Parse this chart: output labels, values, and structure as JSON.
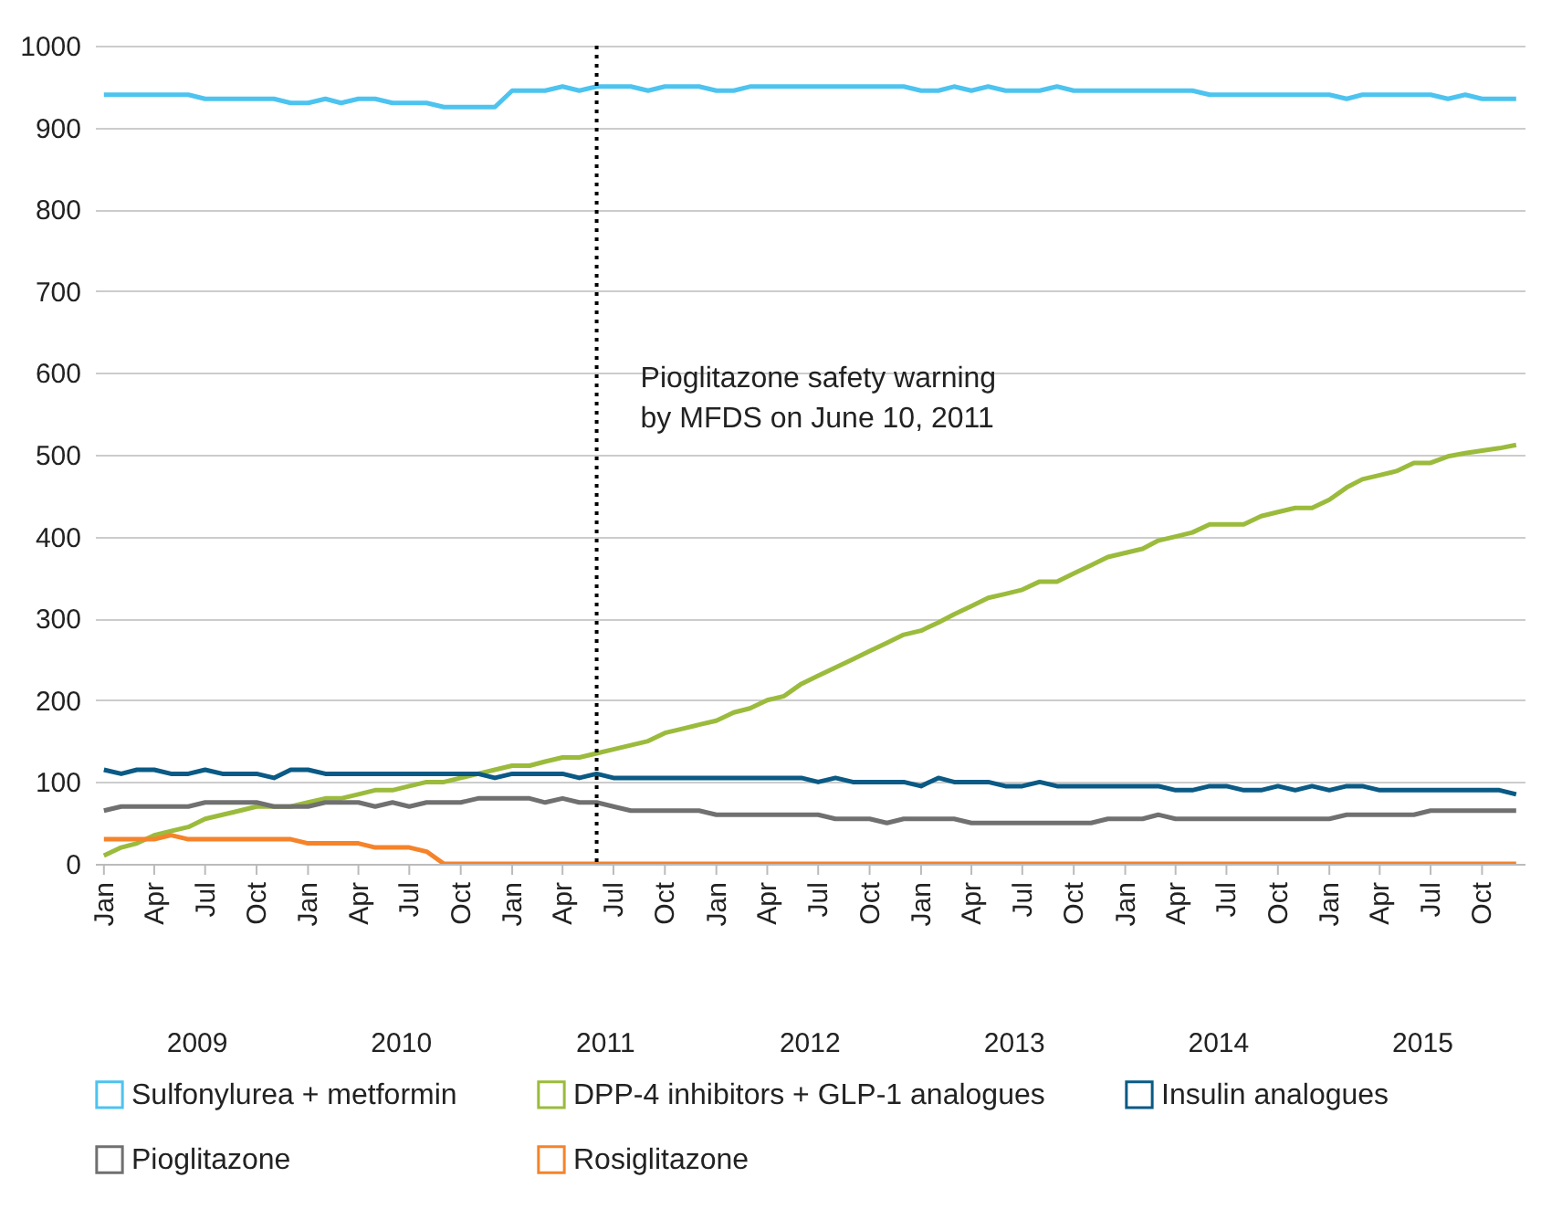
{
  "chart_data": {
    "type": "line",
    "x": [
      "2009-01",
      "2009-02",
      "2009-03",
      "2009-04",
      "2009-05",
      "2009-06",
      "2009-07",
      "2009-08",
      "2009-09",
      "2009-10",
      "2009-11",
      "2009-12",
      "2010-01",
      "2010-02",
      "2010-03",
      "2010-04",
      "2010-05",
      "2010-06",
      "2010-07",
      "2010-08",
      "2010-09",
      "2010-10",
      "2010-11",
      "2010-12",
      "2011-01",
      "2011-02",
      "2011-03",
      "2011-04",
      "2011-05",
      "2011-06",
      "2011-07",
      "2011-08",
      "2011-09",
      "2011-10",
      "2011-11",
      "2011-12",
      "2012-01",
      "2012-02",
      "2012-03",
      "2012-04",
      "2012-05",
      "2012-06",
      "2012-07",
      "2012-08",
      "2012-09",
      "2012-10",
      "2012-11",
      "2012-12",
      "2013-01",
      "2013-02",
      "2013-03",
      "2013-04",
      "2013-05",
      "2013-06",
      "2013-07",
      "2013-08",
      "2013-09",
      "2013-10",
      "2013-11",
      "2013-12",
      "2014-01",
      "2014-02",
      "2014-03",
      "2014-04",
      "2014-05",
      "2014-06",
      "2014-07",
      "2014-08",
      "2014-09",
      "2014-10",
      "2014-11",
      "2014-12",
      "2015-01",
      "2015-02",
      "2015-03",
      "2015-04",
      "2015-05",
      "2015-06",
      "2015-07",
      "2015-08",
      "2015-09",
      "2015-10",
      "2015-11",
      "2015-12"
    ],
    "series": [
      {
        "name": "Sulfonylurea + metformin",
        "color": "#4dc3f0",
        "values": [
          940,
          940,
          940,
          940,
          940,
          940,
          935,
          935,
          935,
          935,
          935,
          930,
          930,
          935,
          930,
          935,
          935,
          930,
          930,
          930,
          925,
          925,
          925,
          925,
          945,
          945,
          945,
          950,
          945,
          950,
          950,
          950,
          945,
          950,
          950,
          950,
          945,
          945,
          950,
          950,
          950,
          950,
          950,
          950,
          950,
          950,
          950,
          950,
          945,
          945,
          950,
          945,
          950,
          945,
          945,
          945,
          950,
          945,
          945,
          945,
          945,
          945,
          945,
          945,
          945,
          940,
          940,
          940,
          940,
          940,
          940,
          940,
          940,
          935,
          940,
          940,
          940,
          940,
          940,
          935,
          940,
          935,
          935,
          935
        ]
      },
      {
        "name": "DPP-4 inhibitors + GLP-1 analogues",
        "color": "#9bbb3c",
        "values": [
          10,
          20,
          25,
          35,
          40,
          45,
          55,
          60,
          65,
          70,
          70,
          70,
          75,
          80,
          80,
          85,
          90,
          90,
          95,
          100,
          100,
          105,
          110,
          115,
          120,
          120,
          125,
          130,
          130,
          135,
          140,
          145,
          150,
          160,
          165,
          170,
          175,
          185,
          190,
          200,
          205,
          220,
          230,
          240,
          250,
          260,
          270,
          280,
          285,
          295,
          305,
          315,
          325,
          330,
          335,
          345,
          345,
          355,
          365,
          375,
          380,
          385,
          395,
          400,
          405,
          415,
          415,
          415,
          425,
          430,
          435,
          435,
          445,
          460,
          470,
          475,
          480,
          490,
          490,
          498,
          502,
          505,
          508,
          512
        ]
      },
      {
        "name": "Insulin analogues",
        "color": "#0a5a85",
        "values": [
          115,
          110,
          115,
          115,
          110,
          110,
          115,
          110,
          110,
          110,
          105,
          115,
          115,
          110,
          110,
          110,
          110,
          110,
          110,
          110,
          110,
          110,
          110,
          105,
          110,
          110,
          110,
          110,
          105,
          110,
          105,
          105,
          105,
          105,
          105,
          105,
          105,
          105,
          105,
          105,
          105,
          105,
          100,
          105,
          100,
          100,
          100,
          100,
          95,
          105,
          100,
          100,
          100,
          95,
          95,
          100,
          95,
          95,
          95,
          95,
          95,
          95,
          95,
          90,
          90,
          95,
          95,
          90,
          90,
          95,
          90,
          95,
          90,
          95,
          95,
          90,
          90,
          90,
          90,
          90,
          90,
          90,
          90,
          85
        ]
      },
      {
        "name": "Pioglitazone",
        "color": "#707070",
        "values": [
          65,
          70,
          70,
          70,
          70,
          70,
          75,
          75,
          75,
          75,
          70,
          70,
          70,
          75,
          75,
          75,
          70,
          75,
          70,
          75,
          75,
          75,
          80,
          80,
          80,
          80,
          75,
          80,
          75,
          75,
          70,
          65,
          65,
          65,
          65,
          65,
          60,
          60,
          60,
          60,
          60,
          60,
          60,
          55,
          55,
          55,
          50,
          55,
          55,
          55,
          55,
          50,
          50,
          50,
          50,
          50,
          50,
          50,
          50,
          55,
          55,
          55,
          60,
          55,
          55,
          55,
          55,
          55,
          55,
          55,
          55,
          55,
          55,
          60,
          60,
          60,
          60,
          60,
          65,
          65,
          65,
          65,
          65,
          65
        ]
      },
      {
        "name": "Rosiglitazone",
        "color": "#f5832a",
        "values": [
          30,
          30,
          30,
          30,
          35,
          30,
          30,
          30,
          30,
          30,
          30,
          30,
          25,
          25,
          25,
          25,
          20,
          20,
          20,
          15,
          0,
          0,
          0,
          0,
          0,
          0,
          0,
          0,
          0,
          0,
          0,
          0,
          0,
          0,
          0,
          0,
          0,
          0,
          0,
          0,
          0,
          0,
          0,
          0,
          0,
          0,
          0,
          0,
          0,
          0,
          0,
          0,
          0,
          0,
          0,
          0,
          0,
          0,
          0,
          0,
          0,
          0,
          0,
          0,
          0,
          0,
          0,
          0,
          0,
          0,
          0,
          0,
          0,
          0,
          0,
          0,
          0,
          0,
          0,
          0,
          0,
          0,
          0,
          0
        ]
      }
    ],
    "xlim": [
      "2008-12-16",
      "2015-12-16"
    ],
    "xticks": [
      {
        "value": "2009-01",
        "label": "Jan"
      },
      {
        "value": "2009-04",
        "label": "Apr"
      },
      {
        "value": "2009-07",
        "label": "Jul"
      },
      {
        "value": "2009-10",
        "label": "Oct"
      },
      {
        "value": "2010-01",
        "label": "Jan"
      },
      {
        "value": "2010-04",
        "label": "Apr"
      },
      {
        "value": "2010-07",
        "label": "Jul"
      },
      {
        "value": "2010-10",
        "label": "Oct"
      },
      {
        "value": "2011-01",
        "label": "Jan"
      },
      {
        "value": "2011-04",
        "label": "Apr"
      },
      {
        "value": "2011-07",
        "label": "Jul"
      },
      {
        "value": "2011-10",
        "label": "Oct"
      },
      {
        "value": "2012-01",
        "label": "Jan"
      },
      {
        "value": "2012-04",
        "label": "Apr"
      },
      {
        "value": "2012-07",
        "label": "Jul"
      },
      {
        "value": "2012-10",
        "label": "Oct"
      },
      {
        "value": "2013-01",
        "label": "Jan"
      },
      {
        "value": "2013-04",
        "label": "Apr"
      },
      {
        "value": "2013-07",
        "label": "Jul"
      },
      {
        "value": "2013-10",
        "label": "Oct"
      },
      {
        "value": "2014-01",
        "label": "Jan"
      },
      {
        "value": "2014-04",
        "label": "Apr"
      },
      {
        "value": "2014-07",
        "label": "Jul"
      },
      {
        "value": "2014-10",
        "label": "Oct"
      },
      {
        "value": "2015-01",
        "label": "Jan"
      },
      {
        "value": "2015-04",
        "label": "Apr"
      },
      {
        "value": "2015-07",
        "label": "Jul"
      },
      {
        "value": "2015-10",
        "label": "Oct"
      }
    ],
    "ylim": [
      0,
      1000
    ],
    "yticks": [
      0,
      100,
      200,
      300,
      400,
      500,
      600,
      700,
      800,
      900,
      1000
    ],
    "grid": "y",
    "legend": "bottom",
    "marker": "none",
    "line_style": "solid",
    "ref_lines": [
      {
        "axis": "x",
        "value": "2011-06",
        "label": "Pioglitazone safety warning\nby MFDS on June 10, 2011",
        "line_style": "dotted",
        "color": "#000000"
      }
    ],
    "annotations": [
      "2009",
      "2010",
      "2011",
      "2012",
      "2013",
      "2014",
      "2015"
    ]
  }
}
